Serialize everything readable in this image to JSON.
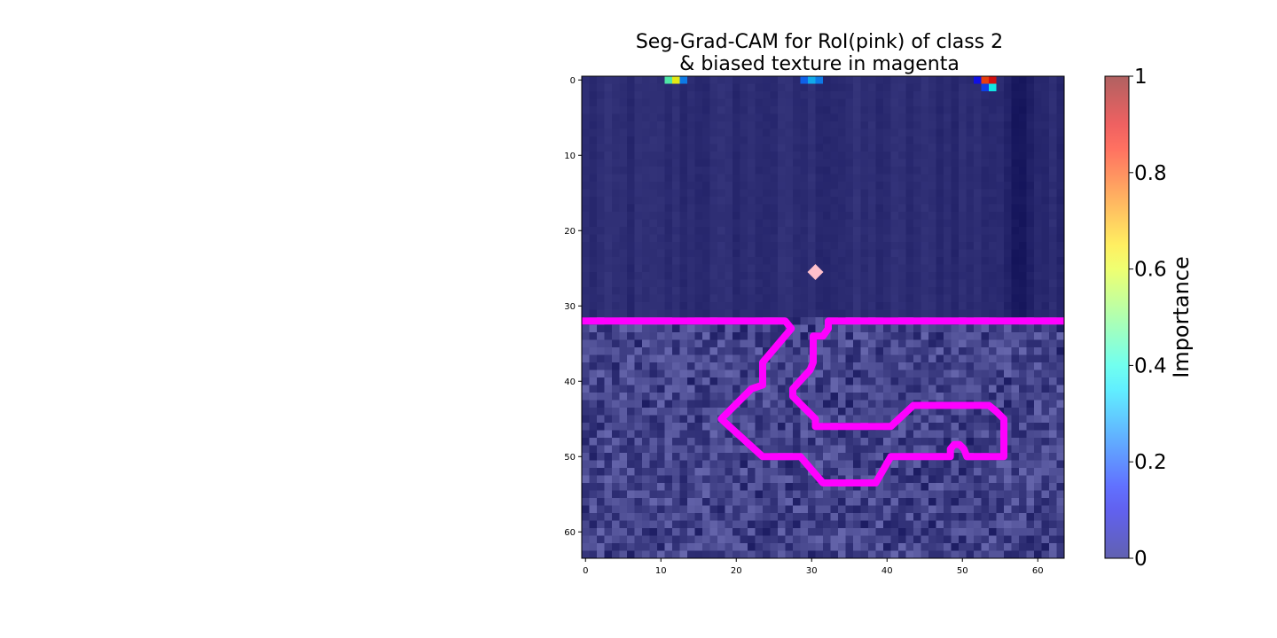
{
  "chart_data": {
    "type": "heatmap",
    "title_line1": "Seg-Grad-CAM for RoI(pink) of class 2",
    "title_line2": "& biased texture in magenta",
    "xlim": [
      -0.5,
      63.5
    ],
    "ylim": [
      63.5,
      -0.5
    ],
    "grid_size": 64,
    "x_ticks": [
      0,
      10,
      20,
      30,
      40,
      50,
      60
    ],
    "y_ticks": [
      0,
      10,
      20,
      30,
      40,
      50,
      60
    ],
    "colormap": "jet",
    "overlay_alpha": 0.55,
    "texture_boundary_row": 32,
    "hot_cells": [
      {
        "row": 0,
        "col": 11,
        "value": 0.45
      },
      {
        "row": 0,
        "col": 12,
        "value": 0.62
      },
      {
        "row": 0,
        "col": 13,
        "value": 0.25
      },
      {
        "row": 0,
        "col": 29,
        "value": 0.22
      },
      {
        "row": 0,
        "col": 30,
        "value": 0.3
      },
      {
        "row": 0,
        "col": 31,
        "value": 0.25
      },
      {
        "row": 0,
        "col": 53,
        "value": 0.82
      },
      {
        "row": 0,
        "col": 54,
        "value": 0.9
      },
      {
        "row": 1,
        "col": 53,
        "value": 0.18
      },
      {
        "row": 1,
        "col": 54,
        "value": 0.38
      },
      {
        "row": 0,
        "col": 52,
        "value": 0.12
      }
    ],
    "roi_point": {
      "x": 30.5,
      "y": 25.5,
      "color": "#ffc0cb"
    },
    "biased_texture_outline": {
      "color": "#ff00ff",
      "points": [
        [
          -0.5,
          32
        ],
        [
          26.5,
          32
        ],
        [
          27.3,
          33
        ],
        [
          23.5,
          37.5
        ],
        [
          23.5,
          40.5
        ],
        [
          22,
          41
        ],
        [
          19,
          44
        ],
        [
          18,
          45
        ],
        [
          23.5,
          50
        ],
        [
          28.5,
          50
        ],
        [
          31.5,
          53.5
        ],
        [
          38.5,
          53.5
        ],
        [
          40.5,
          50
        ],
        [
          48.4,
          50
        ],
        [
          48.4,
          49
        ],
        [
          48.9,
          48.4
        ],
        [
          49.6,
          48.4
        ],
        [
          50.2,
          49
        ],
        [
          50.6,
          50
        ],
        [
          55.5,
          50
        ],
        [
          55.5,
          45
        ],
        [
          54.5,
          44
        ],
        [
          53.5,
          43.2
        ],
        [
          43.5,
          43.2
        ],
        [
          40.5,
          46
        ],
        [
          30.5,
          46
        ],
        [
          30.5,
          45
        ],
        [
          27.5,
          42
        ],
        [
          27.5,
          41
        ],
        [
          29.8,
          38.5
        ],
        [
          30.2,
          37.5
        ],
        [
          30.2,
          34
        ],
        [
          31.5,
          34
        ],
        [
          32.2,
          33
        ],
        [
          32.2,
          32
        ],
        [
          63.5,
          32
        ]
      ]
    },
    "colorbar": {
      "label": "Importance",
      "ticks": [
        {
          "value": 0,
          "label": "0"
        },
        {
          "value": 0.2,
          "label": "0.2"
        },
        {
          "value": 0.4,
          "label": "0.4"
        },
        {
          "value": 0.6,
          "label": "0.6"
        },
        {
          "value": 0.8,
          "label": "0.8"
        },
        {
          "value": 1,
          "label": "1"
        }
      ]
    }
  }
}
